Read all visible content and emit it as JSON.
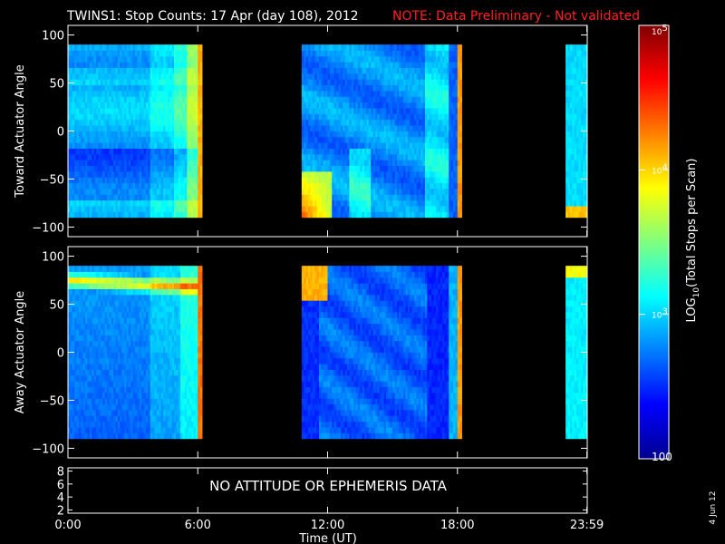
{
  "title": "TWINS1: Stop Counts: 17 Apr (day 108), 2012",
  "note": "NOTE: Data Preliminary - Not validated",
  "date_stamp": "4 Jun 12",
  "chart_data": [
    {
      "type": "heatmap",
      "name": "toward",
      "ylabel": "Toward Actuator Angle",
      "ylim": [
        -110,
        110
      ],
      "yticks": [
        "100",
        "50",
        "0",
        "−50",
        "−100"
      ],
      "ytick_values": [
        100,
        50,
        0,
        -50,
        -100
      ],
      "angle_range": [
        -90,
        90
      ],
      "data_intervals_hours": [
        [
          0,
          6.2
        ],
        [
          10.8,
          18.2
        ],
        [
          23.0,
          24.0
        ]
      ]
    },
    {
      "type": "heatmap",
      "name": "away",
      "ylabel": "Away Actuator Angle",
      "ylim": [
        -110,
        110
      ],
      "yticks": [
        "100",
        "50",
        "0",
        "−50",
        "−100"
      ],
      "ytick_values": [
        100,
        50,
        0,
        -50,
        -100
      ],
      "angle_range": [
        -90,
        90
      ],
      "data_intervals_hours": [
        [
          0,
          6.2
        ],
        [
          10.8,
          18.2
        ],
        [
          23.0,
          24.0
        ]
      ]
    },
    {
      "type": "line",
      "name": "attitude",
      "ylim": [
        1.5,
        8.5
      ],
      "yticks": [
        "8",
        "6",
        "4",
        "2"
      ],
      "ytick_values": [
        8,
        6,
        4,
        2
      ],
      "message": "NO ATTITUDE OR EPHEMERIS DATA"
    }
  ],
  "x_axis": {
    "xlabel": "Time (UT)",
    "xlim": [
      0,
      24
    ],
    "ticks": [
      "0:00",
      "6:00",
      "12:00",
      "18:00",
      "23:59"
    ],
    "tick_values": [
      0,
      6,
      12,
      18,
      23.983
    ]
  },
  "colorbar": {
    "label": "LOG10(Total Stops per Scan)",
    "label_base": "LOG",
    "label_sub": "10",
    "label_rest": "(Total Stops per Scan)",
    "scale": "log",
    "range": [
      100,
      100000
    ],
    "ticks": [
      {
        "value": 100000,
        "base": "10",
        "exp": "5"
      },
      {
        "value": 10000,
        "base": "10",
        "exp": "4"
      },
      {
        "value": 1000,
        "base": "10",
        "exp": "3"
      },
      {
        "value": 100,
        "base": "100",
        "exp": ""
      }
    ]
  }
}
